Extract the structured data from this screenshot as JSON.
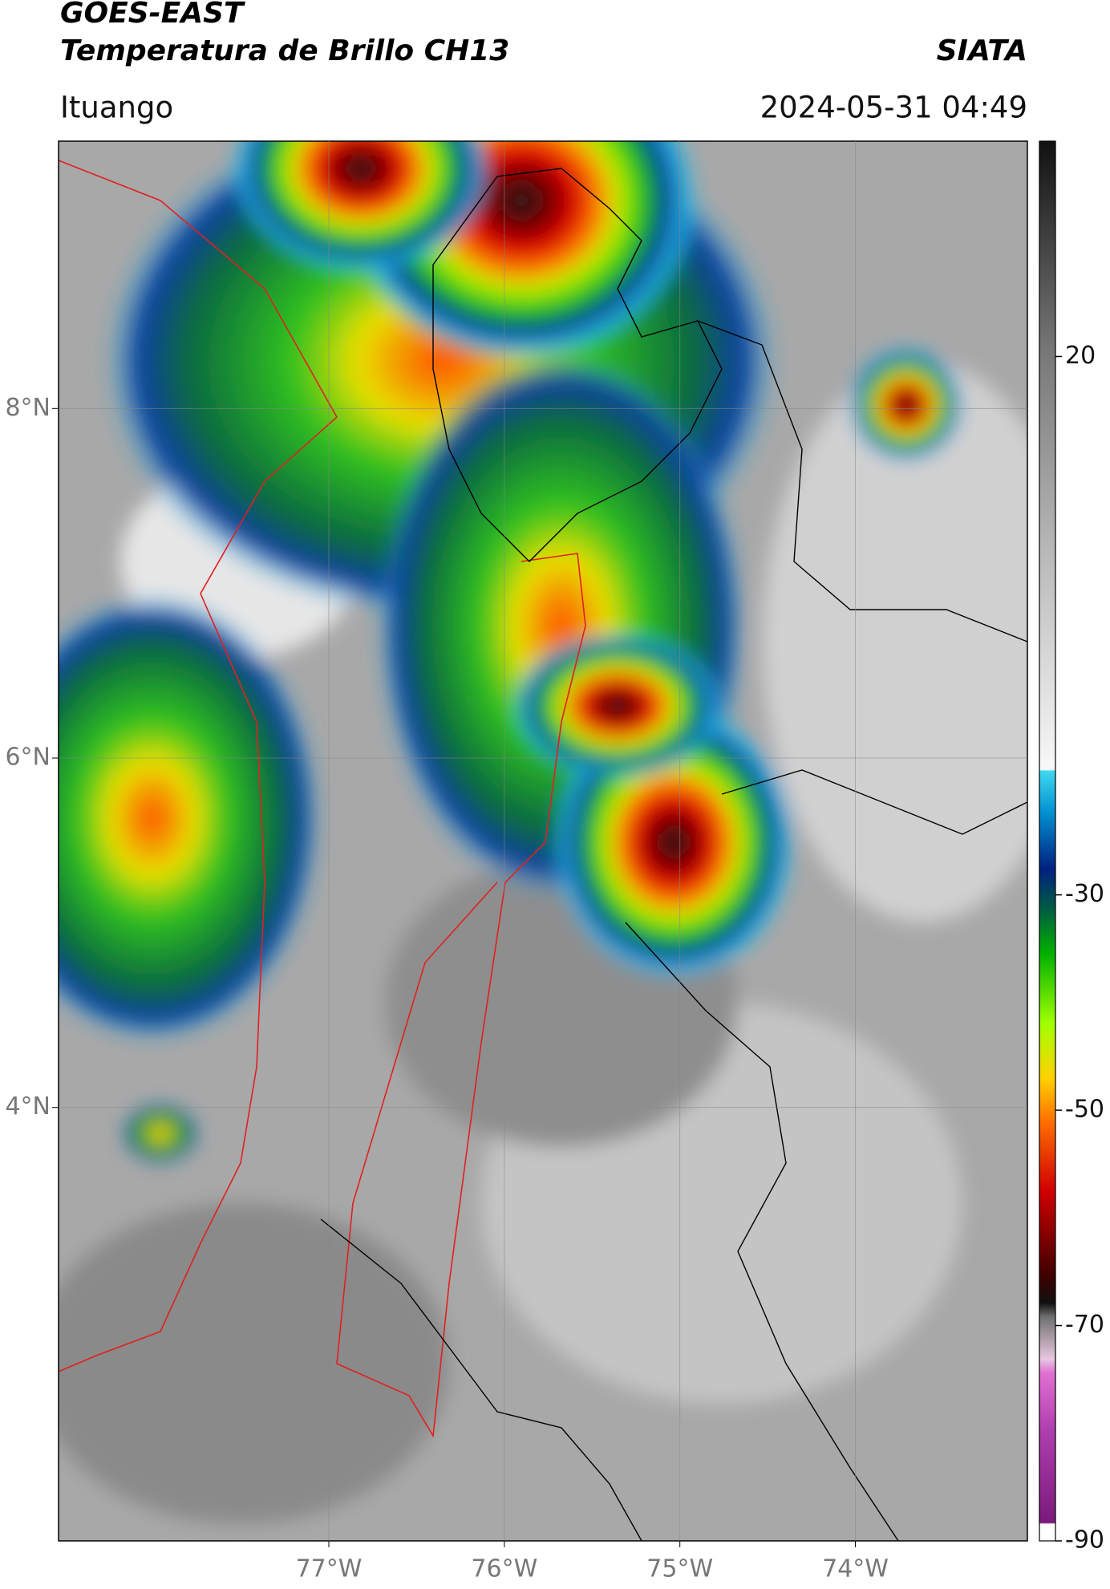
{
  "header": {
    "satellite": "GOES-EAST",
    "product": "Temperatura de Brillo CH13",
    "agency": "SIATA",
    "location": "Ituango",
    "datetime": "2024-05-31 04:49"
  },
  "map": {
    "xlim": [
      -78.54,
      -73.02
    ],
    "ylim": [
      1.52,
      9.53
    ],
    "xticks": [
      {
        "value": -77,
        "label": "77°W"
      },
      {
        "value": -76,
        "label": "76°W"
      },
      {
        "value": -75,
        "label": "75°W"
      },
      {
        "value": -74,
        "label": "74°W"
      }
    ],
    "yticks": [
      {
        "value": 8,
        "label": "8°N"
      },
      {
        "value": 6,
        "label": "6°N"
      },
      {
        "value": 4,
        "label": "4°N"
      }
    ],
    "grid": true
  },
  "colorbar": {
    "lim": [
      -90,
      40
    ],
    "ticks": [
      20,
      -30,
      -50,
      -70,
      -90
    ]
  }
}
